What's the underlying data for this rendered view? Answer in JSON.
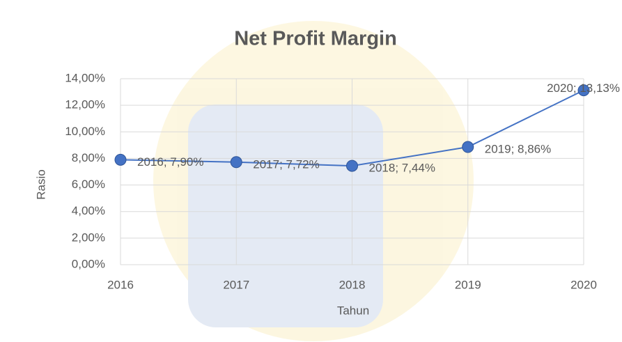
{
  "chart_data": {
    "type": "line",
    "title": "Net Profit Margin",
    "x_label": "Tahun",
    "y_label": "Rasio",
    "x": [
      2016,
      2017,
      2018,
      2019,
      2020
    ],
    "xlim": [
      2016,
      2020
    ],
    "xticks": [
      2016,
      2017,
      2018,
      2019,
      2020
    ],
    "ylim": [
      0,
      14
    ],
    "yticks": [
      {
        "value": 0,
        "label": "0,00%"
      },
      {
        "value": 2,
        "label": "2,00%"
      },
      {
        "value": 4,
        "label": "4,00%"
      },
      {
        "value": 6,
        "label": "6,00%"
      },
      {
        "value": 8,
        "label": "8,00%"
      },
      {
        "value": 10,
        "label": "10,00%"
      },
      {
        "value": 12,
        "label": "12,00%"
      },
      {
        "value": 14,
        "label": "14,00%"
      }
    ],
    "grid": true,
    "series": [
      {
        "name": "Net Profit Margin",
        "color": "#4472c4",
        "values": [
          7.9,
          7.72,
          7.44,
          8.86,
          13.13
        ],
        "value_labels": [
          "2016; 7,90%",
          "2017; 7,72%",
          "2018; 7,44%",
          "2019; 8,86%",
          "2020; 13,13%"
        ]
      }
    ]
  }
}
